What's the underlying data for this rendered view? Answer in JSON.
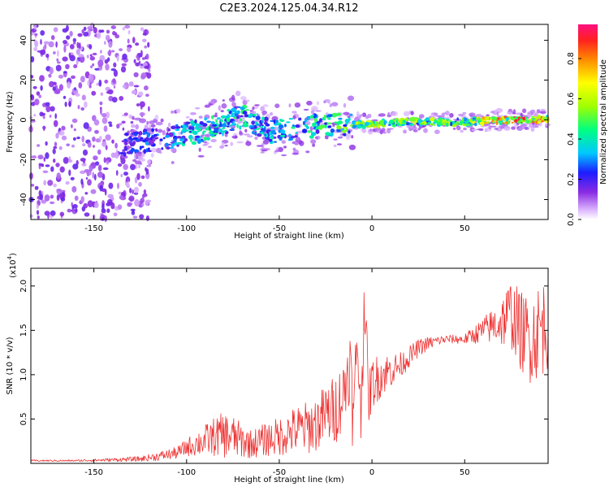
{
  "title": "C2E3.2024.125.04.34.R12",
  "colorbar": {
    "label": "Normalized spectral amplitude",
    "ticks": [
      "0.0",
      "0.2",
      "0.4",
      "0.6",
      "0.8"
    ],
    "tick_values": [
      0.0,
      0.2,
      0.4,
      0.6,
      0.8
    ],
    "range": [
      0,
      0.97
    ]
  },
  "chart_data": [
    {
      "type": "heatmap",
      "xlabel": "Height of straight line (km)",
      "ylabel": "Frequency (Hz)",
      "xlim": [
        -184,
        95
      ],
      "ylim": [
        -50,
        48
      ],
      "x_ticks": [
        -150,
        -100,
        -50,
        0,
        50
      ],
      "x_tick_labels": [
        "-150",
        "-100",
        "-50",
        "0",
        "50"
      ],
      "y_ticks": [
        -40,
        -20,
        0,
        20,
        40
      ],
      "y_tick_labels": [
        "-40",
        "-20",
        "0",
        "20",
        "40"
      ],
      "ridge": {
        "description_points": [
          {
            "x": -130,
            "y": -12,
            "amp": 0.25
          },
          {
            "x": -110,
            "y": -9,
            "amp": 0.35
          },
          {
            "x": -90,
            "y": -5,
            "amp": 0.45
          },
          {
            "x": -70,
            "y": 2,
            "amp": 0.45
          },
          {
            "x": -55,
            "y": -6,
            "amp": 0.4
          },
          {
            "x": -40,
            "y": -4,
            "amp": 0.45
          },
          {
            "x": -20,
            "y": -2,
            "amp": 0.5
          },
          {
            "x": 0,
            "y": -2,
            "amp": 0.7
          },
          {
            "x": 20,
            "y": -1,
            "amp": 0.6
          },
          {
            "x": 50,
            "y": -1,
            "amp": 0.6
          },
          {
            "x": 75,
            "y": 0,
            "amp": 0.9
          },
          {
            "x": 95,
            "y": 0,
            "amp": 0.8
          }
        ]
      }
    },
    {
      "type": "line",
      "xlabel": "Height of straight line (km)",
      "ylabel": "SNR (10 * v/v)",
      "y_multiplier_label": "(x10",
      "y_multiplier_exp": "4",
      "y_multiplier_close": ")",
      "xlim": [
        -184,
        95
      ],
      "ylim": [
        0,
        2.2
      ],
      "x_ticks": [
        -150,
        -100,
        -50,
        0,
        50
      ],
      "x_tick_labels": [
        "-150",
        "-100",
        "-50",
        "0",
        "50"
      ],
      "y_ticks": [
        0.5,
        1.0,
        1.5,
        2.0
      ],
      "y_tick_labels": [
        "0.5",
        "1.0",
        "1.5",
        "2.0"
      ],
      "color": "#ee3333",
      "series": [
        {
          "x": [
            -184,
            -160,
            -140,
            -125,
            -115,
            -105,
            -100,
            -95,
            -90,
            -85,
            -80,
            -75,
            -70,
            -65,
            -60,
            -55,
            -50,
            -45,
            -40,
            -35,
            -30,
            -25,
            -20,
            -15,
            -12,
            -10,
            -8,
            -6,
            -4,
            -2,
            0,
            5,
            10,
            15,
            20,
            25,
            30,
            35,
            40,
            45,
            50,
            55,
            60,
            65,
            70,
            75,
            80,
            85,
            90,
            95
          ],
          "y": [
            0.03,
            0.03,
            0.04,
            0.05,
            0.08,
            0.12,
            0.18,
            0.22,
            0.26,
            0.3,
            0.32,
            0.3,
            0.25,
            0.22,
            0.25,
            0.28,
            0.3,
            0.35,
            0.38,
            0.4,
            0.45,
            0.55,
            0.6,
            0.8,
            1.2,
            0.4,
            1.5,
            0.5,
            2.0,
            0.7,
            0.9,
            1.0,
            1.05,
            1.1,
            1.2,
            1.3,
            1.35,
            1.38,
            1.4,
            1.4,
            1.4,
            1.45,
            1.5,
            1.55,
            1.6,
            1.7,
            1.5,
            1.4,
            1.5,
            1.6
          ],
          "amplitude": [
            0.01,
            0.01,
            0.02,
            0.03,
            0.05,
            0.07,
            0.1,
            0.14,
            0.18,
            0.22,
            0.26,
            0.24,
            0.2,
            0.16,
            0.18,
            0.2,
            0.22,
            0.25,
            0.28,
            0.3,
            0.32,
            0.35,
            0.4,
            0.4,
            0.5,
            0.4,
            0.5,
            0.3,
            0.5,
            0.3,
            0.3,
            0.25,
            0.2,
            0.15,
            0.12,
            0.1,
            0.08,
            0.06,
            0.05,
            0.05,
            0.06,
            0.1,
            0.15,
            0.2,
            0.3,
            0.4,
            0.45,
            0.5,
            0.55,
            0.55
          ]
        }
      ]
    }
  ]
}
